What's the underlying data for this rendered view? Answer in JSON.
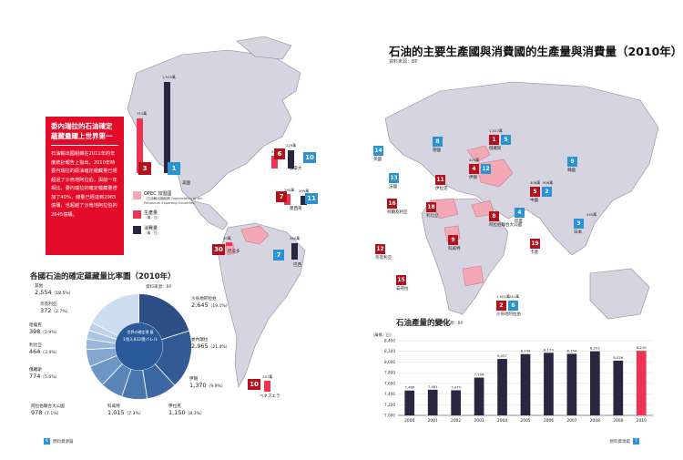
{
  "left_page": {
    "sidebar": {
      "title": "委內瑞拉的石油確定蘊藏量躍上世界第一",
      "body": "石油輸出國組織在2011年的年度統計報告上指出，2010年時委內瑞拉的原油確定蘊藏量已經超過了沙烏地阿拉伯，與前一年相比，委內瑞拉的確定蘊藏量增加了40%，總量已經達到2965億桶，也超越了沙烏地阿拉伯的2645億桶。"
    },
    "legend": {
      "opec_label": "OPEC 加盟國",
      "opec_sub": "（石油輸出國組織 Organization of the Petroleum Exporting Countries）",
      "prod_label": "生產量",
      "prod_unit": "（萬／日）",
      "cons_label": "消費量",
      "cons_unit": "（萬／日）"
    },
    "reserves": {
      "title": "各國石油的確定蘊藏量比率圖（2010年）",
      "source": "資料來源：BP",
      "center_title": "世界の確定埋 量",
      "center_value": "1兆3,832億バレル",
      "segments": [
        {
          "name": "委內瑞拉",
          "value": "2,965",
          "pct": "（21.4%）",
          "color": "#2d4f86"
        },
        {
          "name": "沙烏地阿拉伯",
          "value": "2,645",
          "pct": "（19.1%）",
          "color": "#335a94"
        },
        {
          "name": "伊朗",
          "value": "1,370",
          "pct": "（9.9%）",
          "color": "#3b67a2"
        },
        {
          "name": "伊拉克",
          "value": "1,150",
          "pct": "（8.3%）",
          "color": "#4a76ae"
        },
        {
          "name": "科威特",
          "value": "1,015",
          "pct": "（7.3%）",
          "color": "#5a85b9"
        },
        {
          "name": "阿拉伯聯合大公國",
          "value": "978",
          "pct": "（7.1%）",
          "color": "#6e96c4"
        },
        {
          "name": "俄羅斯",
          "value": "774",
          "pct": "（5.6%）",
          "color": "#84a6ce"
        },
        {
          "name": "利比亞",
          "value": "464",
          "pct": "（3.4%）",
          "color": "#9ab6d8"
        },
        {
          "name": "哈薩克",
          "value": "398",
          "pct": "（2.9%）",
          "color": "#adc4e0"
        },
        {
          "name": "奈及利亞",
          "value": "372",
          "pct": "（2.7%）",
          "color": "#bfd1e7"
        },
        {
          "name": "其他",
          "value": "2,554",
          "pct": "（18.5%）",
          "color": "#cddcee"
        }
      ],
      "shares": [
        21.4,
        19.1,
        9.9,
        8.3,
        7.3,
        7.1,
        5.6,
        3.4,
        2.9,
        2.7,
        18.5
      ]
    },
    "americas": [
      {
        "country": "美國",
        "prod": "751萬",
        "cons": "1,915萬",
        "prod_rank": "3",
        "cons_rank": "1"
      },
      {
        "country": "加拿大",
        "prod": "334萬",
        "cons": "229萬",
        "prod_rank": "6",
        "cons_rank": "10"
      },
      {
        "country": "墨西哥",
        "prod": "295萬",
        "cons": "199萬",
        "prod_rank": "7",
        "cons_rank": "11"
      },
      {
        "country": "巴西",
        "prod": "",
        "cons": "260萬",
        "prod_rank": "",
        "cons_rank": "7"
      },
      {
        "country": "厄瓜多",
        "prod": "50萬",
        "cons": "",
        "prod_rank": "30",
        "cons_rank": ""
      },
      {
        "country": "ベネズエラ",
        "prod": "247萬",
        "cons": "",
        "prod_rank": "10",
        "cons_rank": ""
      }
    ],
    "footer": {
      "page": "6",
      "section": "燃料資源篇"
    }
  },
  "right_page": {
    "title": "石油的主要生產國與消費國的生產量與消費量（2010年）",
    "source": "資料來源：BP",
    "countries": [
      {
        "name": "俄羅斯",
        "prod": "1,027萬",
        "prod_rank": "1",
        "cons_rank": "5"
      },
      {
        "name": "中國",
        "prod": "406萬",
        "cons": "906萬",
        "prod_rank": "5",
        "cons_rank": "2"
      },
      {
        "name": "日本",
        "cons": "445萬",
        "cons_rank": "3"
      },
      {
        "name": "印度",
        "cons_rank": "4"
      },
      {
        "name": "伊朗",
        "prod": "425萬",
        "prod_rank": "4",
        "cons_rank": "12"
      },
      {
        "name": "沙烏地阿拉伯",
        "prod": "1,001萬",
        "cons": "281萬",
        "prod_rank": "2",
        "cons_rank": "6"
      },
      {
        "name": "阿拉伯聯合大公國",
        "prod_rank": "8"
      },
      {
        "name": "科威特",
        "prod_rank": "9"
      },
      {
        "name": "伊拉克",
        "prod_rank": "11"
      },
      {
        "name": "阿爾及利亞",
        "prod_rank": "16"
      },
      {
        "name": "利比亞",
        "prod_rank": "18"
      },
      {
        "name": "奈及利亞",
        "prod_rank": "12"
      },
      {
        "name": "安哥拉",
        "prod_rank": "15"
      },
      {
        "name": "卡達",
        "prod_rank": "19"
      },
      {
        "name": "英國",
        "cons_rank": "14"
      },
      {
        "name": "德國",
        "cons_rank": "8"
      },
      {
        "name": "法國",
        "cons_rank": "13"
      },
      {
        "name": "韓國",
        "cons_rank": "9"
      }
    ],
    "footer": {
      "page": "7",
      "section": "燃料資源篇"
    }
  },
  "chart_data": {
    "type": "bar",
    "title": "石油產量的變化",
    "source": "資料來源：BP",
    "ylabel": "（萬桶／日）",
    "categories": [
      "2000",
      "2001",
      "2002",
      "2003",
      "2004",
      "2005",
      "2006",
      "2007",
      "2008",
      "2009",
      "2010"
    ],
    "values": [
      7466,
      7481,
      7470,
      7708,
      8057,
      8149,
      8173,
      8154,
      8202,
      8026,
      8210
    ],
    "value_labels": [
      "7,466",
      "7,481",
      "7,470",
      "7,708",
      "8,057",
      "8,149",
      "8,173",
      "8,154",
      "8,202",
      "8,026",
      "8,210"
    ],
    "ylim": [
      7000,
      8400
    ],
    "yticks": [
      "7,000",
      "7,200",
      "7,400",
      "7,600",
      "7,800",
      "8,000",
      "8,200",
      "8,400"
    ],
    "highlight_category": "2010",
    "colors": {
      "bar": "#2a2640",
      "highlight": "#ee3355"
    }
  },
  "colors": {
    "accent_red": "#e30b2a",
    "production": "#ee3355",
    "consumption": "#2a2640",
    "rank_blue": "#2b93d1",
    "land": "#d6d4e0",
    "opec_pink": "#f4a8b6"
  }
}
